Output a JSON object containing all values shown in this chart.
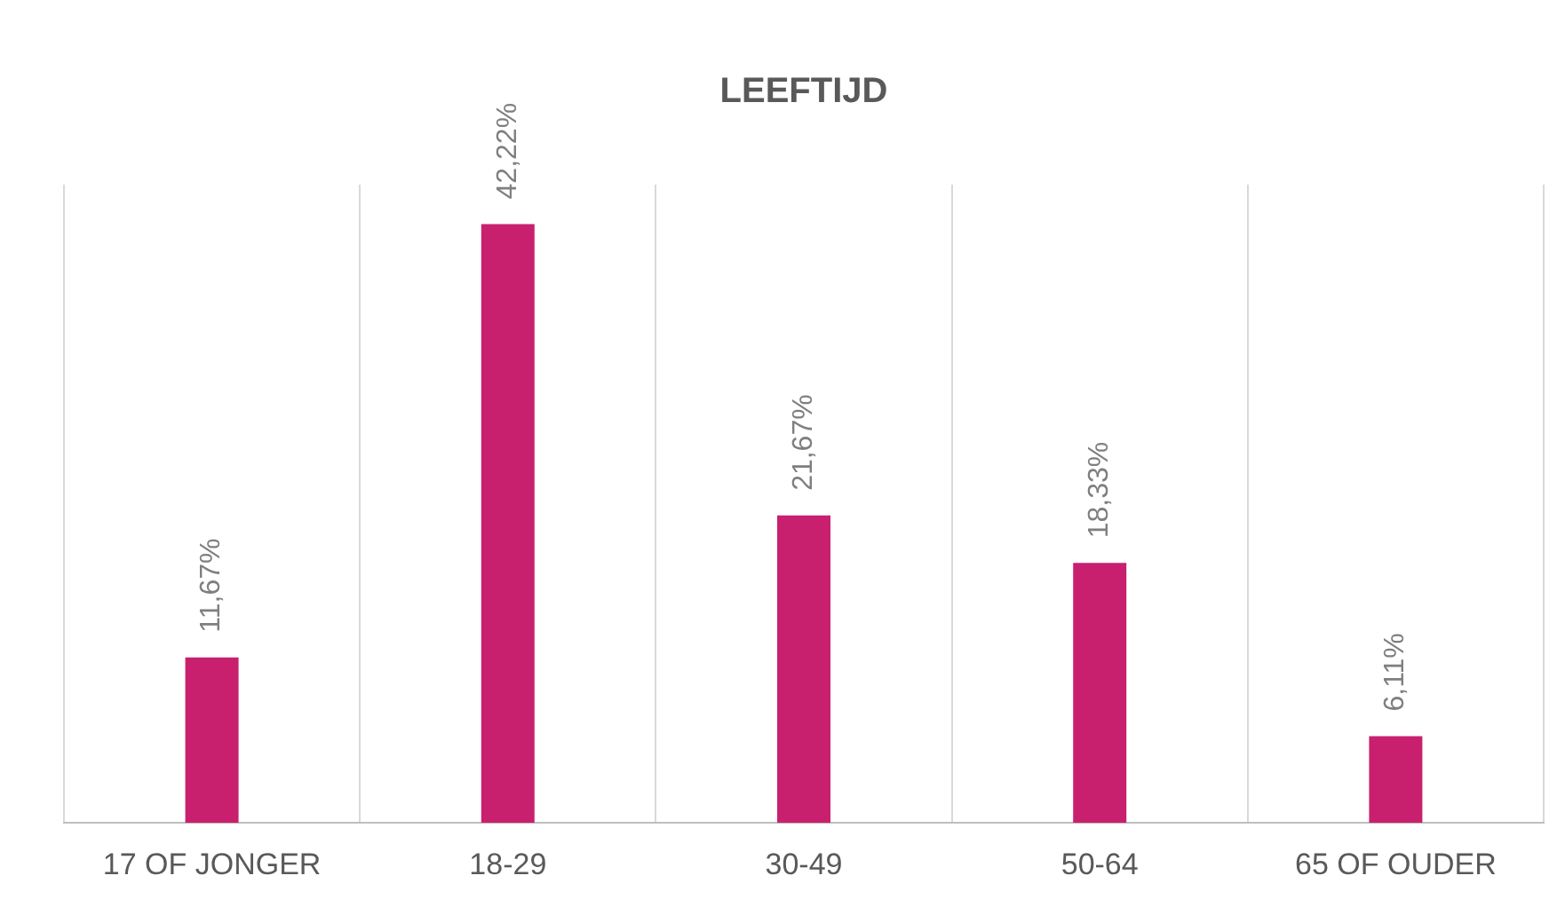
{
  "chart_data": {
    "type": "bar",
    "title": "LEEFTIJD",
    "categories": [
      "17 OF JONGER",
      "18-29",
      "30-49",
      "50-64",
      "65 OF OUDER"
    ],
    "values": [
      11.67,
      42.22,
      21.67,
      18.33,
      6.11
    ],
    "value_labels": [
      "11,67%",
      "42,22%",
      "21,67%",
      "18,33%",
      "6,11%"
    ],
    "color": "#c8206f",
    "grid": "x",
    "legend": false
  }
}
